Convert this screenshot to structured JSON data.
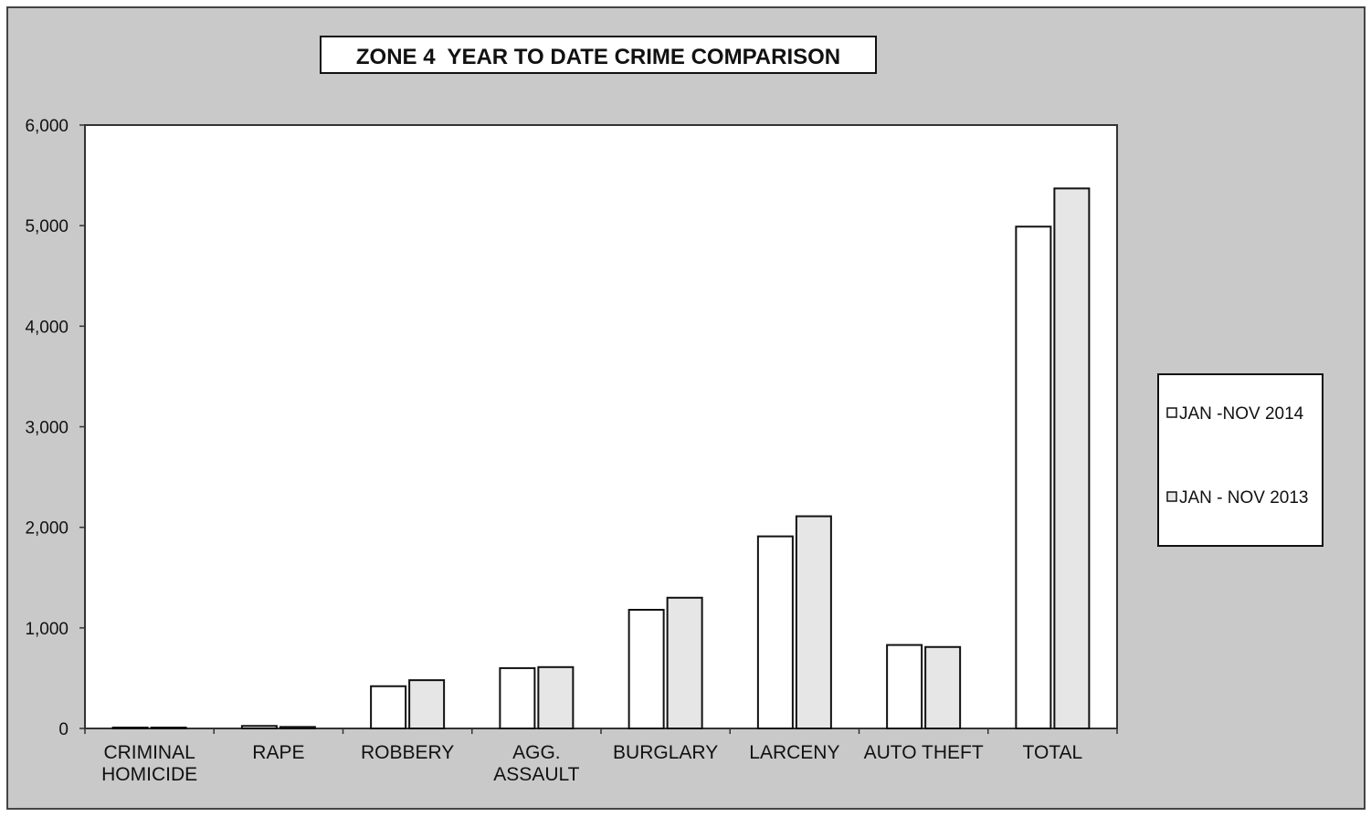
{
  "chart_data": {
    "type": "bar",
    "title": "ZONE 4  YEAR TO DATE CRIME COMPARISON",
    "categories": [
      [
        "CRIMINAL",
        "HOMICIDE"
      ],
      [
        "RAPE"
      ],
      [
        "ROBBERY"
      ],
      [
        "AGG.",
        "ASSAULT"
      ],
      [
        "BURGLARY"
      ],
      [
        "LARCENY"
      ],
      [
        "AUTO THEFT"
      ],
      [
        "TOTAL"
      ]
    ],
    "series": [
      {
        "name": "JAN -NOV 2014",
        "values": [
          8,
          25,
          420,
          600,
          1180,
          1910,
          830,
          4990
        ],
        "fill": "#ffffff"
      },
      {
        "name": "JAN - NOV 2013",
        "values": [
          8,
          15,
          480,
          610,
          1300,
          2110,
          810,
          5370
        ],
        "fill": "#e6e6e6"
      }
    ],
    "ylim": [
      0,
      6000
    ],
    "yticks": [
      0,
      1000,
      2000,
      3000,
      4000,
      5000,
      6000
    ],
    "ytick_labels": [
      "0",
      "1,000",
      "2,000",
      "3,000",
      "4,000",
      "5,000",
      "6,000"
    ],
    "xlabel": "",
    "ylabel": "",
    "grid": false,
    "legend_position": "right",
    "colors": {
      "frame_bg": "#c9c9c9",
      "plot_bg": "#ffffff",
      "stroke": "#222222"
    }
  }
}
